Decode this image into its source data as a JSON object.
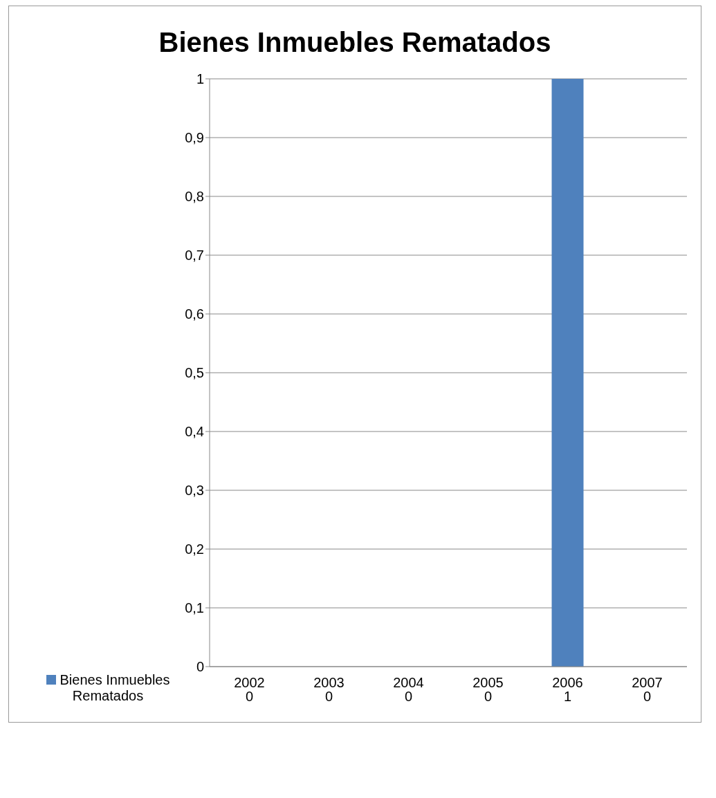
{
  "chart_data": {
    "type": "bar",
    "title": "Bienes Inmuebles Rematados",
    "categories": [
      "2002",
      "2003",
      "2004",
      "2005",
      "2006",
      "2007"
    ],
    "series": [
      {
        "name": "Bienes Inmuebles Rematados",
        "color": "#4f81bd",
        "values": [
          0,
          0,
          0,
          0,
          1,
          0
        ]
      }
    ],
    "ylim": [
      0,
      1
    ],
    "yticks": [
      0,
      {
        "value": 0.1,
        "label": "0,1"
      },
      {
        "value": 0.2,
        "label": "0,2"
      },
      {
        "value": 0.3,
        "label": "0,3"
      },
      {
        "value": 0.4,
        "label": "0,4"
      },
      {
        "value": 0.5,
        "label": "0,5"
      },
      {
        "value": 0.6,
        "label": "0,6"
      },
      {
        "value": 0.7,
        "label": "0,7"
      },
      {
        "value": 0.8,
        "label": "0,8"
      },
      {
        "value": 0.9,
        "label": "0,9"
      },
      1
    ],
    "grid": "y",
    "legend": "bottom left",
    "data_labels": true
  }
}
